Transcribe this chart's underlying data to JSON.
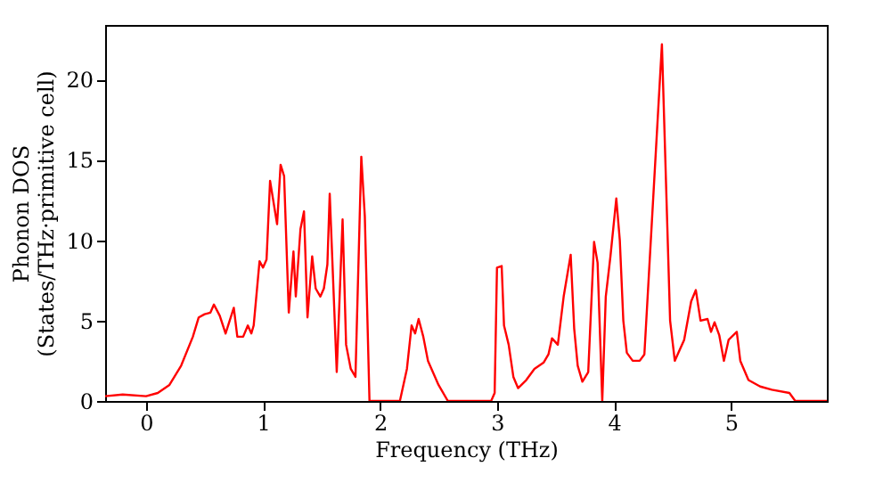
{
  "chart_data": {
    "type": "line",
    "xlabel": "Frequency (THz)",
    "ylabel": "Phonon DOS\n(States/THz·primitive cell)",
    "x": [
      -0.35,
      -0.2,
      0,
      0.1,
      0.2,
      0.3,
      0.4,
      0.45,
      0.5,
      0.55,
      0.58,
      0.63,
      0.68,
      0.75,
      0.78,
      0.83,
      0.87,
      0.9,
      0.92,
      0.97,
      1.0,
      1.03,
      1.06,
      1.12,
      1.15,
      1.18,
      1.22,
      1.26,
      1.28,
      1.32,
      1.35,
      1.38,
      1.42,
      1.45,
      1.49,
      1.52,
      1.55,
      1.57,
      1.63,
      1.68,
      1.71,
      1.75,
      1.79,
      1.84,
      1.87,
      1.91,
      2.0,
      2.17,
      2.23,
      2.27,
      2.3,
      2.33,
      2.37,
      2.41,
      2.5,
      2.58,
      2.95,
      2.98,
      3.0,
      3.04,
      3.06,
      3.1,
      3.14,
      3.18,
      3.25,
      3.32,
      3.4,
      3.44,
      3.47,
      3.52,
      3.57,
      3.63,
      3.66,
      3.69,
      3.73,
      3.78,
      3.83,
      3.86,
      3.9,
      3.93,
      3.97,
      4.02,
      4.05,
      4.08,
      4.11,
      4.16,
      4.22,
      4.26,
      4.41,
      4.48,
      4.52,
      4.6,
      4.66,
      4.7,
      4.74,
      4.8,
      4.83,
      4.86,
      4.9,
      4.94,
      4.98,
      5.05,
      5.08,
      5.15,
      5.25,
      5.35,
      5.5,
      5.55,
      5.82
    ],
    "series": [
      {
        "color": "#ff0000",
        "values": [
          0.3,
          0.4,
          0.3,
          0.5,
          1.0,
          2.2,
          4.0,
          5.2,
          5.4,
          5.5,
          6.0,
          5.3,
          4.2,
          5.8,
          4.0,
          4.0,
          4.7,
          4.2,
          4.7,
          8.7,
          8.3,
          8.8,
          13.7,
          11.0,
          14.7,
          14.0,
          5.5,
          9.3,
          6.5,
          10.7,
          11.8,
          5.2,
          9.0,
          7.0,
          6.5,
          7.0,
          8.5,
          12.9,
          1.8,
          11.3,
          3.5,
          2.0,
          1.5,
          15.2,
          11.5,
          0.0,
          0.0,
          0.0,
          2.0,
          4.7,
          4.2,
          5.1,
          4.0,
          2.5,
          1.0,
          0.0,
          0.0,
          0.5,
          8.3,
          8.4,
          4.7,
          3.5,
          1.5,
          0.8,
          1.3,
          2.0,
          2.4,
          2.9,
          3.9,
          3.5,
          6.5,
          9.1,
          4.5,
          2.2,
          1.2,
          1.8,
          9.9,
          8.6,
          0.0,
          6.5,
          9.0,
          12.6,
          10.0,
          5.0,
          3.0,
          2.5,
          2.5,
          2.9,
          22.2,
          5.0,
          2.5,
          3.8,
          6.2,
          6.9,
          5.0,
          5.1,
          4.3,
          4.9,
          4.1,
          2.5,
          3.8,
          4.3,
          2.5,
          1.3,
          0.9,
          0.7,
          0.5,
          0.0,
          0.0
        ]
      }
    ],
    "xlim": [
      -0.35,
      5.82
    ],
    "xticks": [
      0,
      1,
      2,
      3,
      4,
      5
    ],
    "ylim": [
      0,
      23.4
    ],
    "yticks": [
      0,
      5,
      10,
      15,
      20
    ],
    "grid": false,
    "marker": "none",
    "line_style": "solid"
  }
}
